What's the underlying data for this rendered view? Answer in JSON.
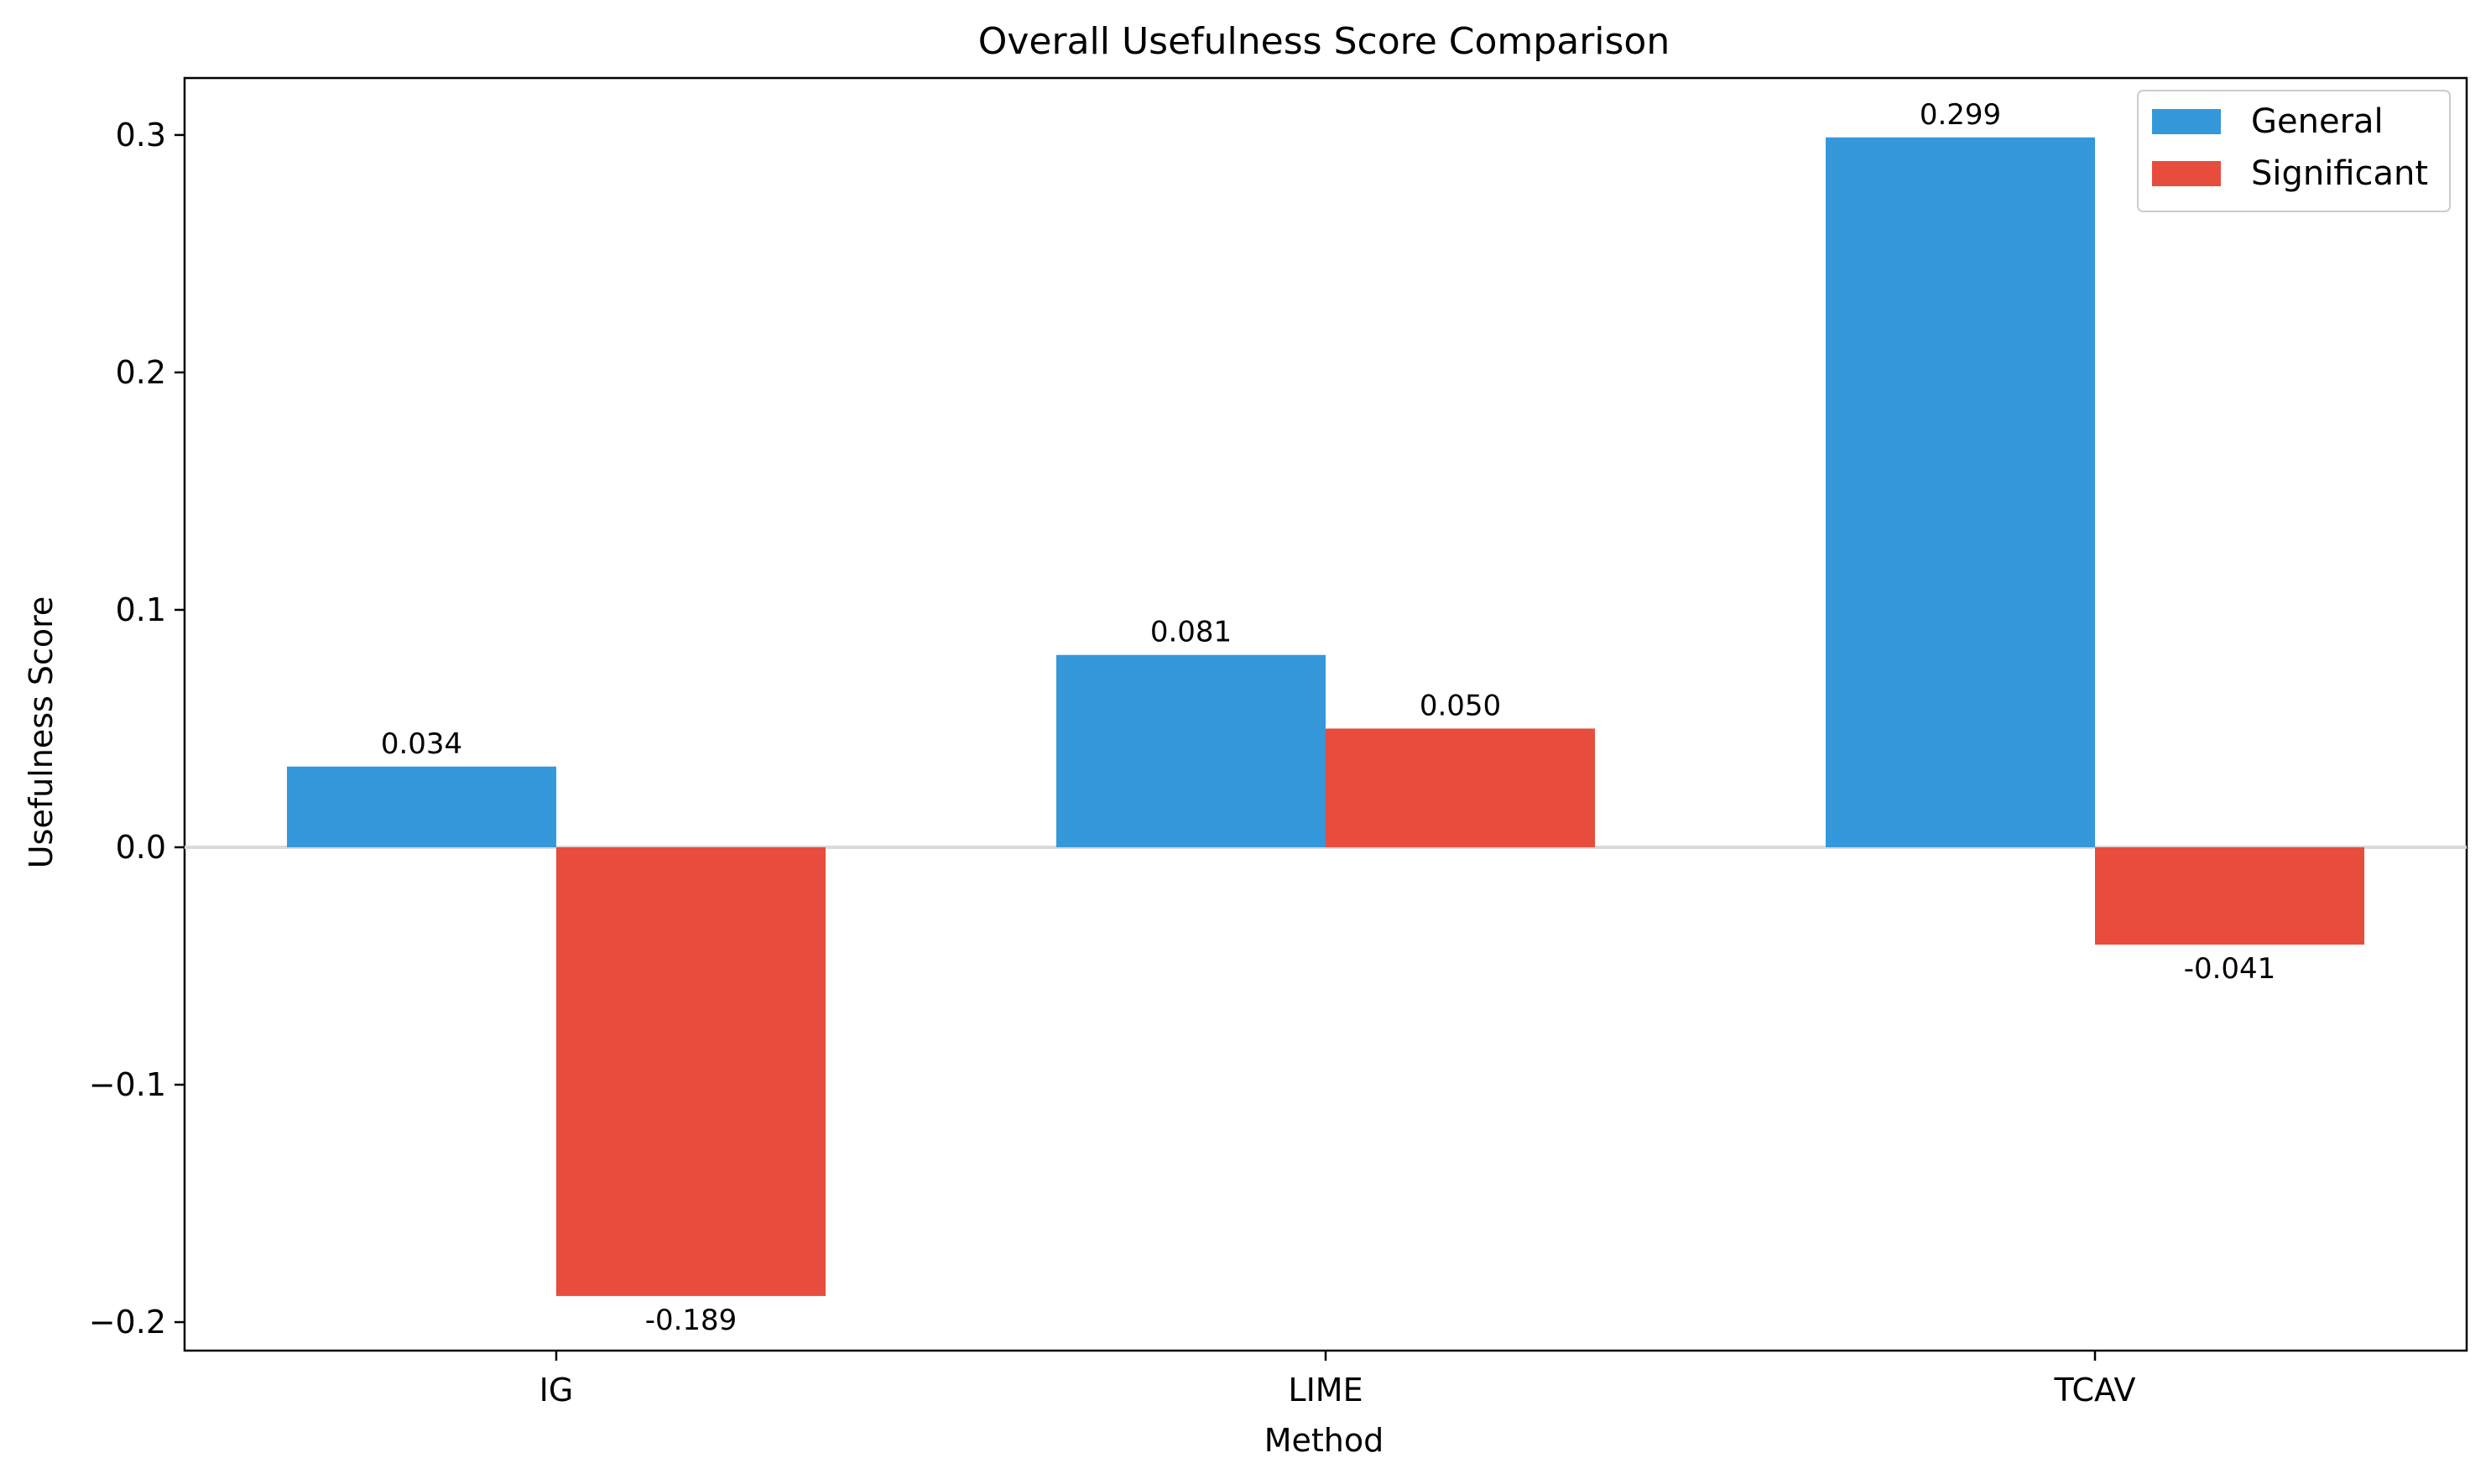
{
  "chart_data": {
    "type": "bar",
    "title": "Overall Usefulness Score Comparison",
    "xlabel": "Method",
    "ylabel": "Usefulness Score",
    "categories": [
      "IG",
      "LIME",
      "TCAV"
    ],
    "series": [
      {
        "name": "General",
        "color": "#3498db",
        "values": [
          0.034,
          0.081,
          0.299
        ],
        "labels": [
          "0.034",
          "0.081",
          "0.299"
        ]
      },
      {
        "name": "Significant",
        "color": "#e74c3c",
        "values": [
          -0.189,
          0.05,
          -0.041
        ],
        "labels": [
          "-0.189",
          "0.050",
          "-0.041"
        ]
      }
    ],
    "ylim": [
      -0.212,
      0.324
    ],
    "yticks": [
      -0.2,
      -0.1,
      0.0,
      0.1,
      0.2,
      0.3
    ],
    "ytick_labels": [
      "−0.2",
      "−0.1",
      "0.0",
      "0.1",
      "0.2",
      "0.3"
    ],
    "zero_line": true,
    "grid": false,
    "legend_position": "top-right"
  }
}
